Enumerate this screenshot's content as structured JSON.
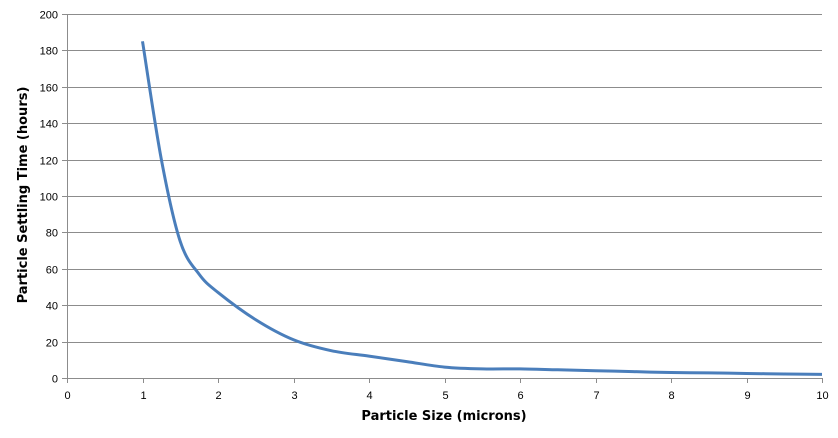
{
  "chart_data": {
    "type": "line",
    "title": "",
    "xlabel": "Particle Size (microns)",
    "ylabel": "Particle Settling Time (hours)",
    "xlim": [
      0,
      10
    ],
    "ylim": [
      0,
      200
    ],
    "x_ticks": [
      "0",
      "1",
      "2",
      "3",
      "4",
      "5",
      "6",
      "7",
      "8",
      "9",
      "10"
    ],
    "y_ticks": [
      "0",
      "20",
      "40",
      "60",
      "80",
      "100",
      "120",
      "140",
      "160",
      "180",
      "200"
    ],
    "grid": "horizontal",
    "legend": "none",
    "series": [
      {
        "color": "#4a7ebb",
        "x": [
          1,
          1.25,
          1.5,
          1.75,
          2,
          2.5,
          3,
          3.5,
          4,
          4.5,
          5,
          5.5,
          6,
          6.5,
          7,
          7.5,
          8,
          8.5,
          9,
          9.5,
          10
        ],
        "y": [
          185,
          120,
          75,
          57,
          47,
          32,
          21,
          15,
          12,
          9,
          6,
          5,
          5,
          4.5,
          4,
          3.5,
          3,
          2.8,
          2.5,
          2.2,
          2
        ]
      }
    ]
  }
}
